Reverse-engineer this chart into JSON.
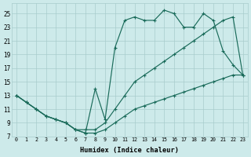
{
  "xlabel": "Humidex (Indice chaleur)",
  "bg_color": "#cdeaea",
  "grid_color": "#a8cccc",
  "line_color": "#1a6b5a",
  "xlim": [
    -0.5,
    23.5
  ],
  "ylim": [
    7,
    26.5
  ],
  "xticks": [
    0,
    1,
    2,
    3,
    4,
    5,
    6,
    7,
    8,
    9,
    10,
    11,
    12,
    13,
    14,
    15,
    16,
    17,
    18,
    19,
    20,
    21,
    22,
    23
  ],
  "yticks": [
    7,
    9,
    11,
    13,
    15,
    17,
    19,
    21,
    23,
    25
  ],
  "line_min_x": [
    0,
    1,
    2,
    3,
    4,
    5,
    6,
    7,
    8,
    9,
    10,
    11,
    12,
    13,
    14,
    15,
    16,
    17,
    18,
    19,
    20,
    21,
    22,
    23
  ],
  "line_min_y": [
    13,
    12,
    11,
    10,
    9.5,
    9,
    8,
    7.5,
    7.5,
    8,
    9,
    10,
    11,
    11.5,
    12,
    12.5,
    13,
    13.5,
    14,
    14.5,
    15,
    15.5,
    16,
    16
  ],
  "line_mid_x": [
    0,
    1,
    2,
    3,
    4,
    5,
    6,
    7,
    8,
    9,
    10,
    11,
    12,
    13,
    14,
    15,
    16,
    17,
    18,
    19,
    20,
    21,
    22,
    23
  ],
  "line_mid_y": [
    13,
    12,
    11,
    10,
    9.5,
    9,
    8,
    8,
    8,
    9,
    11,
    13,
    15,
    16,
    17,
    18,
    19,
    20,
    21,
    22,
    23,
    24,
    24.5,
    16
  ],
  "line_max_x": [
    0,
    1,
    2,
    3,
    4,
    5,
    6,
    7,
    8,
    9,
    10,
    11,
    12,
    13,
    14,
    15,
    16,
    17,
    18,
    19,
    20,
    21,
    22,
    23
  ],
  "line_max_y": [
    13,
    12,
    11,
    10,
    9.5,
    9,
    8,
    7.5,
    14,
    9.5,
    20,
    24,
    24.5,
    24,
    24,
    25.5,
    25,
    23,
    23,
    25,
    24,
    19.5,
    17.5,
    16
  ]
}
